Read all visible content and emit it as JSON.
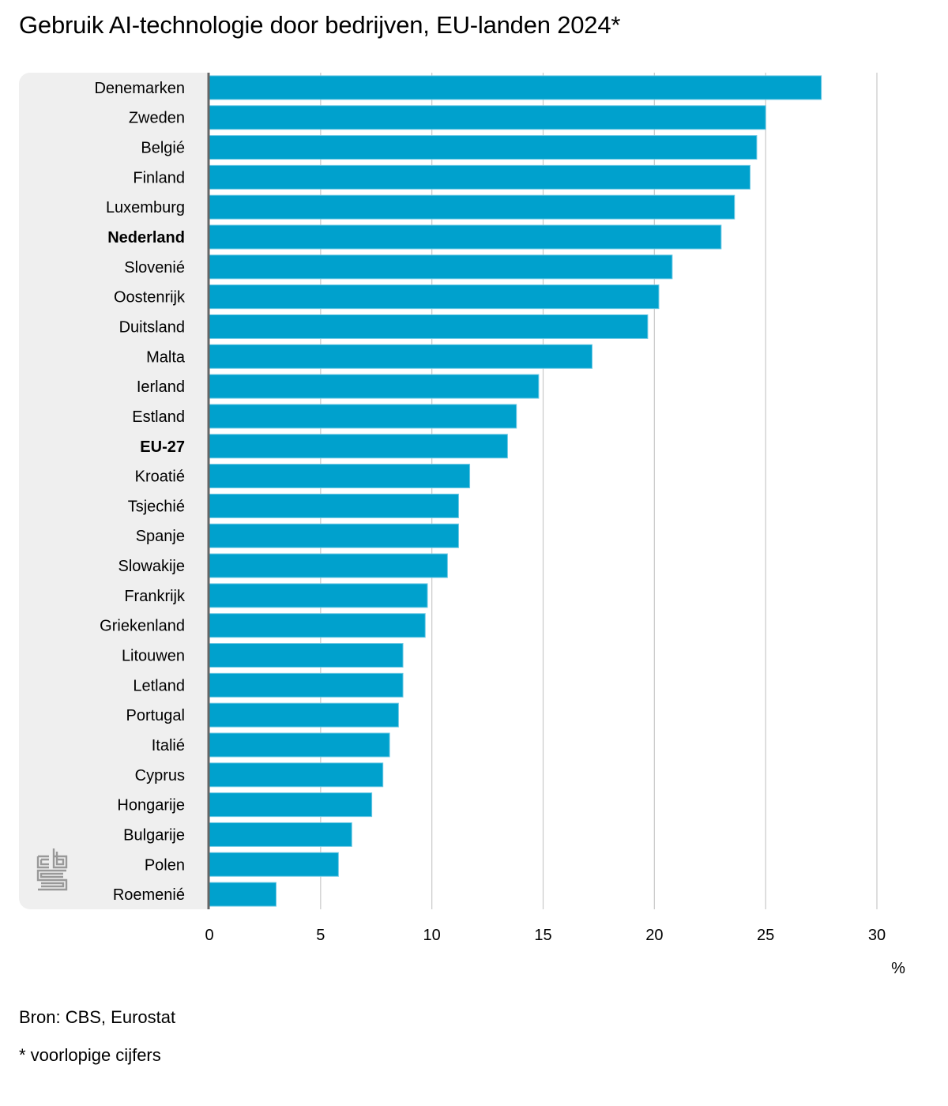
{
  "chart_data": {
    "type": "bar",
    "orientation": "horizontal",
    "title": "Gebruik AI-technologie door bedrijven, EU-landen 2024*",
    "xlabel": "%",
    "ylabel": "",
    "xlim": [
      0,
      30
    ],
    "xticks": [
      0,
      5,
      10,
      15,
      20,
      25,
      30
    ],
    "grid": true,
    "bar_color": "#00a1cd",
    "categories": [
      "Denemarken",
      "Zweden",
      "Belgié",
      "Finland",
      "Luxemburg",
      "Nederland",
      "Slovenié",
      "Oostenrijk",
      "Duitsland",
      "Malta",
      "Ierland",
      "Estland",
      "EU-27",
      "Kroatié",
      "Tsjechié",
      "Spanje",
      "Slowakije",
      "Frankrijk",
      "Griekenland",
      "Litouwen",
      "Letland",
      "Portugal",
      "Italié",
      "Cyprus",
      "Hongarije",
      "Bulgarije",
      "Polen",
      "Roemenié"
    ],
    "values": [
      27.5,
      25.0,
      24.6,
      24.3,
      23.6,
      23.0,
      20.8,
      20.2,
      19.7,
      17.2,
      14.8,
      13.8,
      13.4,
      11.7,
      11.2,
      11.2,
      10.7,
      9.8,
      9.7,
      8.7,
      8.7,
      8.5,
      8.1,
      7.8,
      7.3,
      6.4,
      5.8,
      3.0
    ],
    "highlighted": [
      "Nederland",
      "EU-27"
    ]
  },
  "footer": {
    "source": "Bron: CBS, Eurostat",
    "note": "* voorlopige cijfers"
  },
  "logo": {
    "icon": "cbs-logo-icon"
  }
}
